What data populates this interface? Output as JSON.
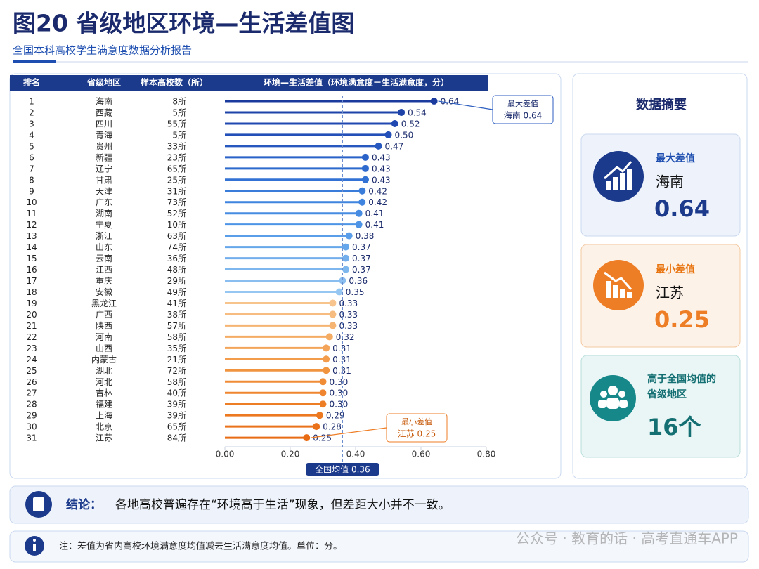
{
  "title": "图20 省级地区环境—生活差值图",
  "subtitle": "全国本科高校学生满意度数据分析报告",
  "chart_data": {
    "type": "lollipop",
    "columns": [
      "排名",
      "省级地区",
      "样本高校数（所）",
      "环境—生活差值（环境满意度－生活满意度，分）"
    ],
    "ranks": [
      1,
      2,
      3,
      4,
      5,
      6,
      7,
      8,
      9,
      10,
      11,
      12,
      13,
      14,
      15,
      16,
      17,
      18,
      19,
      20,
      21,
      22,
      23,
      24,
      25,
      26,
      27,
      28,
      29,
      30,
      31
    ],
    "categories": [
      "海南",
      "西藏",
      "四川",
      "青海",
      "贵州",
      "新疆",
      "辽宁",
      "甘肃",
      "天津",
      "广东",
      "湖南",
      "宁夏",
      "浙江",
      "山东",
      "云南",
      "江西",
      "重庆",
      "安徽",
      "黑龙江",
      "广西",
      "陕西",
      "河南",
      "山西",
      "内蒙古",
      "湖北",
      "河北",
      "吉林",
      "福建",
      "上海",
      "北京",
      "江苏"
    ],
    "sample_counts": [
      "8所",
      "5所",
      "55所",
      "5所",
      "33所",
      "23所",
      "65所",
      "25所",
      "31所",
      "73所",
      "52所",
      "10所",
      "63所",
      "74所",
      "36所",
      "48所",
      "29所",
      "49所",
      "41所",
      "38所",
      "57所",
      "58所",
      "35所",
      "21所",
      "72所",
      "58所",
      "40所",
      "39所",
      "39所",
      "65所",
      "84所"
    ],
    "values": [
      0.64,
      0.54,
      0.52,
      0.5,
      0.47,
      0.43,
      0.43,
      0.43,
      0.42,
      0.42,
      0.41,
      0.41,
      0.38,
      0.37,
      0.37,
      0.37,
      0.36,
      0.35,
      0.33,
      0.33,
      0.33,
      0.32,
      0.31,
      0.31,
      0.31,
      0.3,
      0.3,
      0.3,
      0.29,
      0.28,
      0.25
    ],
    "value_labels": [
      "0.64",
      "0.54",
      "0.52",
      "0.50",
      "0.47",
      "0.43",
      "0.43",
      "0.43",
      "0.42",
      "0.42",
      "0.41",
      "0.41",
      "0.38",
      "0.37",
      "0.37",
      "0.37",
      "0.36",
      "0.35",
      "0.33",
      "0.33",
      "0.33",
      "0.32",
      "0.31",
      "0.31",
      "0.31",
      "0.30",
      "0.30",
      "0.30",
      "0.29",
      "0.28",
      "0.25"
    ],
    "colors": [
      "#1a3a9e",
      "#1e43a8",
      "#2048b0",
      "#2350b8",
      "#2658c0",
      "#2a62c8",
      "#2e6ace",
      "#3272d4",
      "#3a7cda",
      "#3f84de",
      "#468ce2",
      "#4e94e6",
      "#5a9de8",
      "#66a6ea",
      "#72aeec",
      "#7eb6ee",
      "#8abef0",
      "#96c6f2",
      "#f7c48e",
      "#f6bc80",
      "#f5b472",
      "#f4ac64",
      "#f3a458",
      "#f29c4c",
      "#f19440",
      "#f08c36",
      "#ef852e",
      "#ee7e26",
      "#ec7820",
      "#ea721a",
      "#e86c14"
    ],
    "xlim": [
      0,
      0.8
    ],
    "xticks": [
      {
        "value": 0,
        "label": "0.00"
      },
      {
        "value": 0.2,
        "label": "0.20"
      },
      {
        "value": 0.4,
        "label": "0.40"
      },
      {
        "value": 0.6,
        "label": "0.60"
      },
      {
        "value": 0.8,
        "label": "0.80"
      }
    ],
    "mean": {
      "value": 0.36,
      "label": "全国均值 0.36"
    },
    "annotations": [
      {
        "title": "最大差值",
        "text": "海南 0.64"
      },
      {
        "title": "最小差值",
        "text": "江苏 0.25"
      }
    ]
  },
  "summary": {
    "title": "数据摘要",
    "cards": [
      {
        "title": "最大差值",
        "region": "海南",
        "value": "0.64"
      },
      {
        "title": "最小差值",
        "region": "江苏",
        "value": "0.25"
      },
      {
        "title": "高于全国均值的省级地区",
        "value": "16个"
      }
    ]
  },
  "conclusion": {
    "label": "结论：",
    "text": "各地高校普遍存在“环境高于生活”现象，但差距大小并不一致。"
  },
  "note": "注：差值为省内高校环境满意度均值减去生活满意度均值。单位：分。",
  "watermark": "公众号 · 教育的话 · 高考直通车APP"
}
